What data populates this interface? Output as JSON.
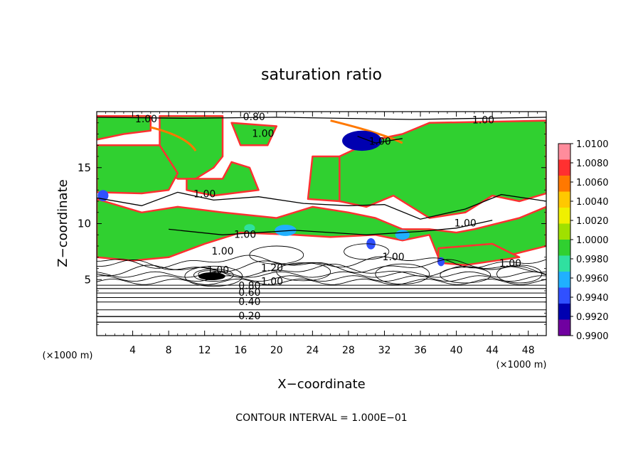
{
  "chart_data": {
    "type": "heatmap",
    "title": "saturation ratio",
    "xlabel": "X−coordinate",
    "ylabel": "Z−coordinate",
    "x_unit_label": "(×1000 m)",
    "z_unit_label": "(×1000 m)",
    "footer": "CONTOUR INTERVAL = 1.000E−01",
    "xlim": [
      0,
      50
    ],
    "ylim": [
      0,
      20
    ],
    "x_ticks": [
      4,
      8,
      12,
      16,
      20,
      24,
      28,
      32,
      36,
      40,
      44,
      48
    ],
    "y_ticks": [
      5,
      10,
      15
    ],
    "colorbar": {
      "min": 0.99,
      "max": 1.01,
      "levels": [
        "1.0100",
        "1.0080",
        "1.0060",
        "1.0040",
        "1.0020",
        "1.0000",
        "0.9980",
        "0.9960",
        "0.9940",
        "0.9920",
        "0.9900"
      ],
      "colors": [
        "#ff8c9c",
        "#ff3030",
        "#ff7800",
        "#ffc800",
        "#f0f000",
        "#a0e000",
        "#30d030",
        "#30e0a0",
        "#20b0ff",
        "#3050ff",
        "#0000b0",
        "#7000a0"
      ]
    },
    "contour_labels": [
      {
        "text": "1.00",
        "x": 5.5,
        "z": 19.3
      },
      {
        "text": "0.80",
        "x": 17.5,
        "z": 19.5
      },
      {
        "text": "1.00",
        "x": 18.5,
        "z": 18.0
      },
      {
        "text": "1.00",
        "x": 31.5,
        "z": 17.3
      },
      {
        "text": "1.00",
        "x": 43.0,
        "z": 19.2
      },
      {
        "text": "1.00",
        "x": 12.0,
        "z": 12.6
      },
      {
        "text": "1.00",
        "x": 16.5,
        "z": 9.0
      },
      {
        "text": "1.00",
        "x": 41.0,
        "z": 10.0
      },
      {
        "text": "1.00",
        "x": 14.0,
        "z": 7.5
      },
      {
        "text": "1.00",
        "x": 33.0,
        "z": 7.0
      },
      {
        "text": "1.00",
        "x": 46.0,
        "z": 6.4
      },
      {
        "text": "1.00",
        "x": 13.5,
        "z": 5.8
      },
      {
        "text": "1.20",
        "x": 19.5,
        "z": 6.0
      },
      {
        "text": "1.00",
        "x": 19.5,
        "z": 4.8
      },
      {
        "text": "0.80",
        "x": 17.0,
        "z": 4.4
      },
      {
        "text": "0.60",
        "x": 17.0,
        "z": 3.8
      },
      {
        "text": "0.40",
        "x": 17.0,
        "z": 3.0
      },
      {
        "text": "0.20",
        "x": 17.0,
        "z": 1.7
      }
    ]
  }
}
